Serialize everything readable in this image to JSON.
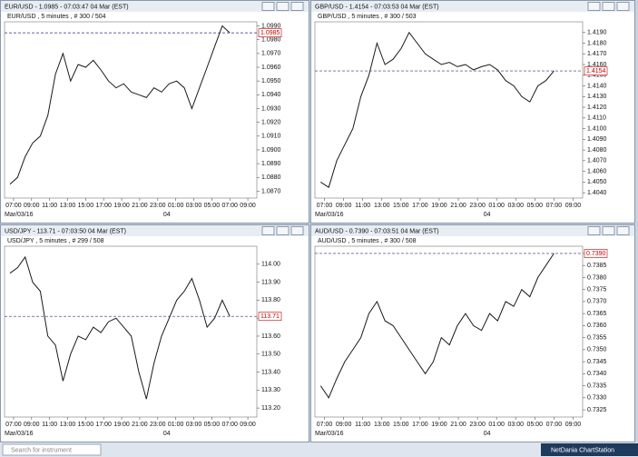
{
  "chart_data": [
    {
      "type": "line",
      "title": "EUR/USD - 1.0985 - 07:03:47  04 Mar (EST)",
      "subtitle": "EUR/USD , 5 minutes , # 300 / 504",
      "color": "#1a1a1a",
      "values": [
        1.0875,
        1.088,
        1.0895,
        1.0905,
        1.091,
        1.0925,
        1.0955,
        1.097,
        1.095,
        1.0962,
        1.096,
        1.0965,
        1.0958,
        1.095,
        1.0945,
        1.0948,
        1.0942,
        1.094,
        1.0938,
        1.0945,
        1.0942,
        1.0948,
        1.095,
        1.0945,
        1.093,
        1.0945,
        1.096,
        1.0975,
        1.099,
        1.0985
      ],
      "ylim": [
        1.0865,
        1.0993
      ],
      "yticks": [
        {
          "value": 1.087,
          "label": "1.0870"
        },
        {
          "value": 1.088,
          "label": "1.0880"
        },
        {
          "value": 1.089,
          "label": "1.0890"
        },
        {
          "value": 1.09,
          "label": "1.0900"
        },
        {
          "value": 1.091,
          "label": "1.0910"
        },
        {
          "value": 1.092,
          "label": "1.0920"
        },
        {
          "value": 1.093,
          "label": "1.0930"
        },
        {
          "value": 1.094,
          "label": "1.0940"
        },
        {
          "value": 1.095,
          "label": "1.0950"
        },
        {
          "value": 1.096,
          "label": "1.0960"
        },
        {
          "value": 1.097,
          "label": "1.0970"
        },
        {
          "value": 1.098,
          "label": "1.0980"
        },
        {
          "value": 1.099,
          "label": "1.0990"
        }
      ],
      "last_value": 1.0985,
      "xtick_labels": [
        "07:00",
        "09:00",
        "11:00",
        "13:00",
        "15:00",
        "17:00",
        "19:00",
        "21:00",
        "23:00",
        "01:00",
        "03:00",
        "05:00",
        "07:00",
        "09:00"
      ],
      "date_labels": [
        "Mar/03/16",
        "04"
      ]
    },
    {
      "type": "line",
      "title": "GBP/USD - 1.4154 - 07:03:53  04 Mar (EST)",
      "subtitle": "GBP/USD , 5 minutes , # 300 / 503",
      "color": "#1a1a1a",
      "values": [
        1.405,
        1.4045,
        1.407,
        1.4085,
        1.41,
        1.413,
        1.415,
        1.418,
        1.416,
        1.4165,
        1.4175,
        1.419,
        1.418,
        1.417,
        1.4165,
        1.416,
        1.4162,
        1.4158,
        1.416,
        1.4155,
        1.4158,
        1.416,
        1.4155,
        1.4145,
        1.414,
        1.413,
        1.4125,
        1.414,
        1.4145,
        1.4154
      ],
      "ylim": [
        1.4035,
        1.42
      ],
      "yticks": [
        {
          "value": 1.404,
          "label": "1.4040"
        },
        {
          "value": 1.405,
          "label": "1.4050"
        },
        {
          "value": 1.406,
          "label": "1.4060"
        },
        {
          "value": 1.407,
          "label": "1.4070"
        },
        {
          "value": 1.408,
          "label": "1.4080"
        },
        {
          "value": 1.409,
          "label": "1.4090"
        },
        {
          "value": 1.41,
          "label": "1.4100"
        },
        {
          "value": 1.411,
          "label": "1.4110"
        },
        {
          "value": 1.412,
          "label": "1.4120"
        },
        {
          "value": 1.413,
          "label": "1.4130"
        },
        {
          "value": 1.414,
          "label": "1.4140"
        },
        {
          "value": 1.415,
          "label": "1.4150"
        },
        {
          "value": 1.416,
          "label": "1.4160"
        },
        {
          "value": 1.417,
          "label": "1.4170"
        },
        {
          "value": 1.418,
          "label": "1.4180"
        },
        {
          "value": 1.419,
          "label": "1.4190"
        }
      ],
      "last_value": 1.4154,
      "xtick_labels": [
        "07:00",
        "09:00",
        "11:00",
        "13:00",
        "15:00",
        "17:00",
        "19:00",
        "21:00",
        "23:00",
        "01:00",
        "03:00",
        "05:00",
        "07:00",
        "09:00"
      ],
      "date_labels": [
        "Mar/03/16",
        "04"
      ]
    },
    {
      "type": "line",
      "title": "USD/JPY - 113.71 - 07:03:50  04 Mar (EST)",
      "subtitle": "USD/JPY , 5 minutes , # 299 / 508",
      "color": "#1a1a1a",
      "values": [
        113.95,
        113.98,
        114.04,
        113.9,
        113.85,
        113.6,
        113.55,
        113.35,
        113.5,
        113.6,
        113.58,
        113.65,
        113.62,
        113.68,
        113.7,
        113.65,
        113.6,
        113.4,
        113.25,
        113.45,
        113.6,
        113.7,
        113.8,
        113.85,
        113.92,
        113.8,
        113.65,
        113.7,
        113.8,
        113.71
      ],
      "ylim": [
        113.15,
        114.1
      ],
      "yticks": [
        {
          "value": 113.2,
          "label": "113.20"
        },
        {
          "value": 113.3,
          "label": "113.30"
        },
        {
          "value": 113.4,
          "label": "113.40"
        },
        {
          "value": 113.5,
          "label": "113.50"
        },
        {
          "value": 113.6,
          "label": "113.60"
        },
        {
          "value": 113.7,
          "label": "113.70"
        },
        {
          "value": 113.8,
          "label": "113.80"
        },
        {
          "value": 113.9,
          "label": "113.90"
        },
        {
          "value": 114.0,
          "label": "114.00"
        }
      ],
      "last_value": 113.71,
      "xtick_labels": [
        "07:00",
        "09:00",
        "11:00",
        "13:00",
        "15:00",
        "17:00",
        "19:00",
        "21:00",
        "23:00",
        "01:00",
        "03:00",
        "05:00",
        "07:00",
        "09:00"
      ],
      "date_labels": [
        "Mar/03/16",
        "04"
      ]
    },
    {
      "type": "line",
      "title": "AUD/USD - 0.7390 - 07:03:51  04 Mar (EST)",
      "subtitle": "AUD/USD , 5 minutes , # 300 / 508",
      "color": "#1a1a1a",
      "values": [
        0.7335,
        0.733,
        0.7338,
        0.7345,
        0.735,
        0.7355,
        0.7365,
        0.737,
        0.7362,
        0.736,
        0.7355,
        0.735,
        0.7345,
        0.734,
        0.7345,
        0.7355,
        0.7352,
        0.736,
        0.7365,
        0.736,
        0.7358,
        0.7365,
        0.7362,
        0.737,
        0.7368,
        0.7375,
        0.7372,
        0.738,
        0.7385,
        0.739
      ],
      "ylim": [
        0.7322,
        0.7393
      ],
      "yticks": [
        0.7325,
        {
          "value": 0.733,
          "label": "0.7330"
        },
        0.7335,
        {
          "value": 0.734,
          "label": "0.7340"
        },
        0.7345,
        {
          "value": 0.735,
          "label": "0.7350"
        },
        0.7355,
        {
          "value": 0.736,
          "label": "0.7360"
        },
        0.7365,
        {
          "value": 0.737,
          "label": "0.7370"
        },
        0.7375,
        {
          "value": 0.738,
          "label": "0.7380"
        },
        0.7385,
        {
          "value": 0.739,
          "label": "0.7390"
        }
      ],
      "last_value": {
        "value": 0.739,
        "label": "0.7390"
      },
      "xtick_labels": [
        "07:00",
        "09:00",
        "11:00",
        "13:00",
        "15:00",
        "17:00",
        "19:00",
        "21:00",
        "23:00",
        "01:00",
        "03:00",
        "05:00",
        "07:00",
        "09:00"
      ],
      "date_labels": [
        "Mar/03/16",
        "04"
      ]
    }
  ],
  "taskbar": {
    "search_placeholder": "Search for instrument",
    "app_name": "NetDania ChartStation"
  }
}
